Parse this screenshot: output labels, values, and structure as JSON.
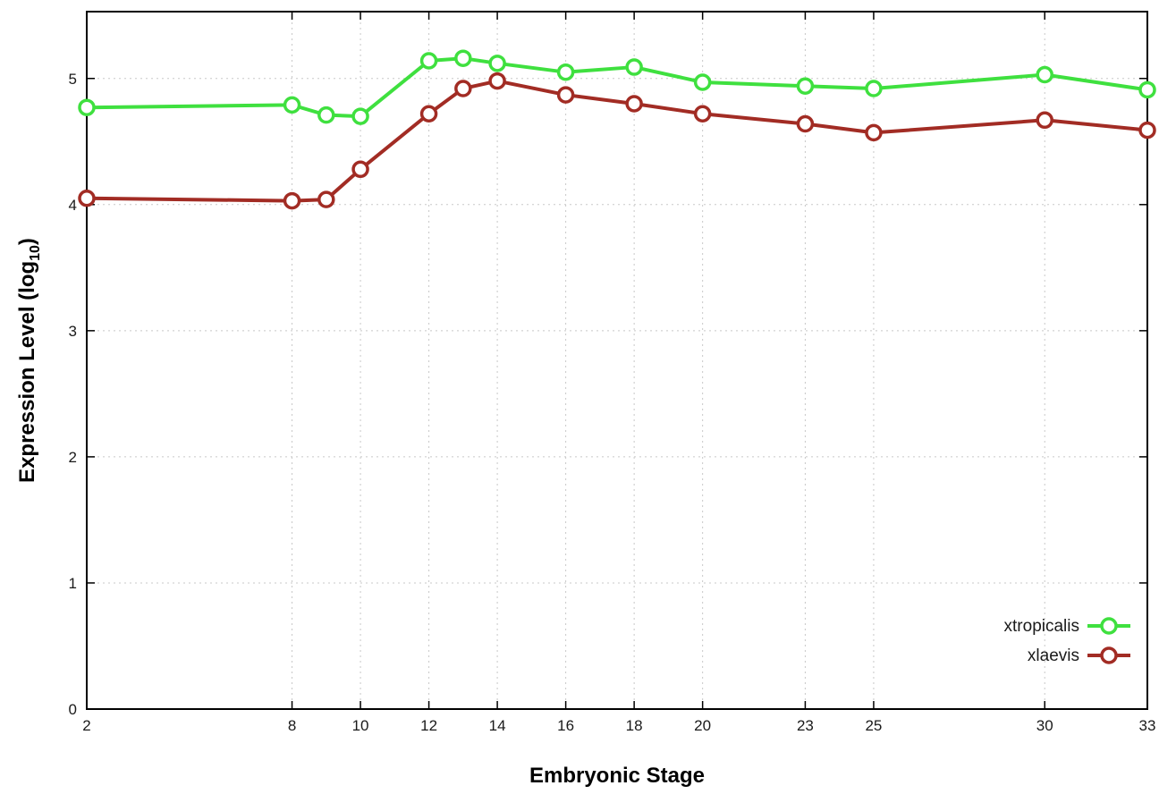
{
  "chart_data": {
    "type": "line",
    "title": "",
    "xlabel": "Embryonic Stage",
    "ylabel": "Expression Level (log10)",
    "ylabel_parts": {
      "pre": "Expression Level (log",
      "sub": "10",
      "post": ")"
    },
    "xlim": [
      2,
      33
    ],
    "ylim": [
      0,
      5.53
    ],
    "xticks": [
      2,
      8,
      10,
      12,
      14,
      16,
      18,
      20,
      23,
      25,
      30,
      33
    ],
    "yticks": [
      0,
      1,
      2,
      3,
      4,
      5
    ],
    "grid": true,
    "legend_position": "inside-right-bottom",
    "x": [
      2,
      8,
      9,
      10,
      12,
      13,
      14,
      16,
      18,
      20,
      23,
      25,
      30,
      33
    ],
    "series": [
      {
        "name": "xtropicalis",
        "color": "#3fe03f",
        "values": [
          4.77,
          4.79,
          4.71,
          4.7,
          5.14,
          5.16,
          5.12,
          5.05,
          5.09,
          4.97,
          4.94,
          4.92,
          5.03,
          4.91
        ]
      },
      {
        "name": "xlaevis",
        "color": "#a22c24",
        "values": [
          4.05,
          4.03,
          4.04,
          4.28,
          4.72,
          4.92,
          4.98,
          4.87,
          4.8,
          4.72,
          4.64,
          4.57,
          4.67,
          4.59
        ]
      }
    ],
    "colors": {
      "axis": "#000000",
      "grid": "#c8c8c8",
      "tick_text": "#1a1a1a",
      "background": "#ffffff",
      "marker_fill": "#ffffff"
    }
  }
}
